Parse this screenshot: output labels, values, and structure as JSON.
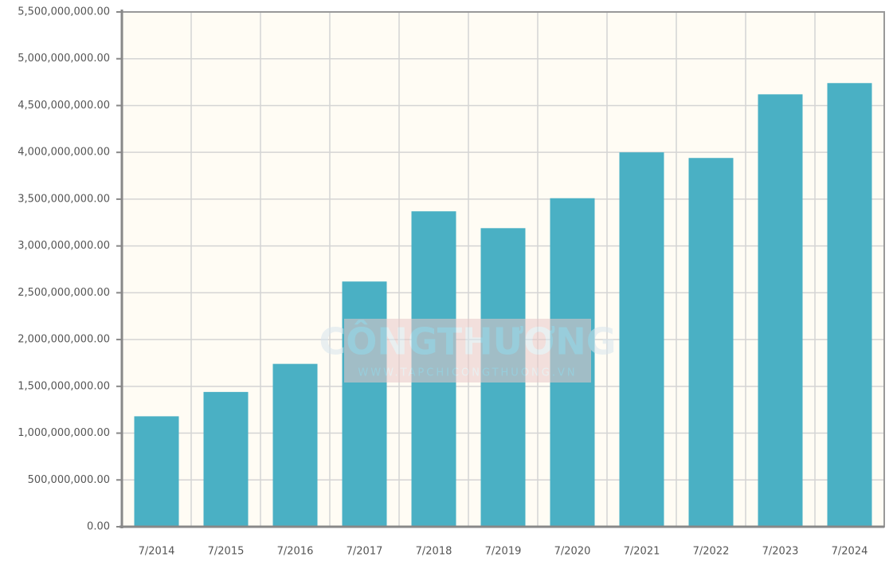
{
  "chart_data": {
    "type": "bar",
    "categories": [
      "7/2014",
      "7/2015",
      "7/2016",
      "7/2017",
      "7/2018",
      "7/2019",
      "7/2020",
      "7/2021",
      "7/2022",
      "7/2023",
      "7/2024"
    ],
    "values": [
      1180000000,
      1440000000,
      1740000000,
      2620000000,
      3370000000,
      3190000000,
      3510000000,
      4000000000,
      3940000000,
      4620000000,
      4740000000
    ],
    "color": "#4ab0c4",
    "ylim": [
      0,
      5500000000
    ],
    "yticks": [
      {
        "value": 0,
        "label": "0.00"
      },
      {
        "value": 500000000,
        "label": "500,000,000.00"
      },
      {
        "value": 1000000000,
        "label": "1,000,000,000.00"
      },
      {
        "value": 1500000000,
        "label": "1,500,000,000.00"
      },
      {
        "value": 2000000000,
        "label": "2,000,000,000.00"
      },
      {
        "value": 2500000000,
        "label": "2,500,000,000.00"
      },
      {
        "value": 3000000000,
        "label": "3,000,000,000.00"
      },
      {
        "value": 3500000000,
        "label": "3,500,000,000.00"
      },
      {
        "value": 4000000000,
        "label": "4,000,000,000.00"
      },
      {
        "value": 4500000000,
        "label": "4,500,000,000.00"
      },
      {
        "value": 5000000000,
        "label": "5,000,000,000.00"
      },
      {
        "value": 5500000000,
        "label": "5,500,000,000.00"
      }
    ],
    "grid": true,
    "watermark": {
      "title": "CÔNGTHƯƠNG",
      "url": "WWW.TAPCHICONGTHUONG.VN"
    }
  }
}
